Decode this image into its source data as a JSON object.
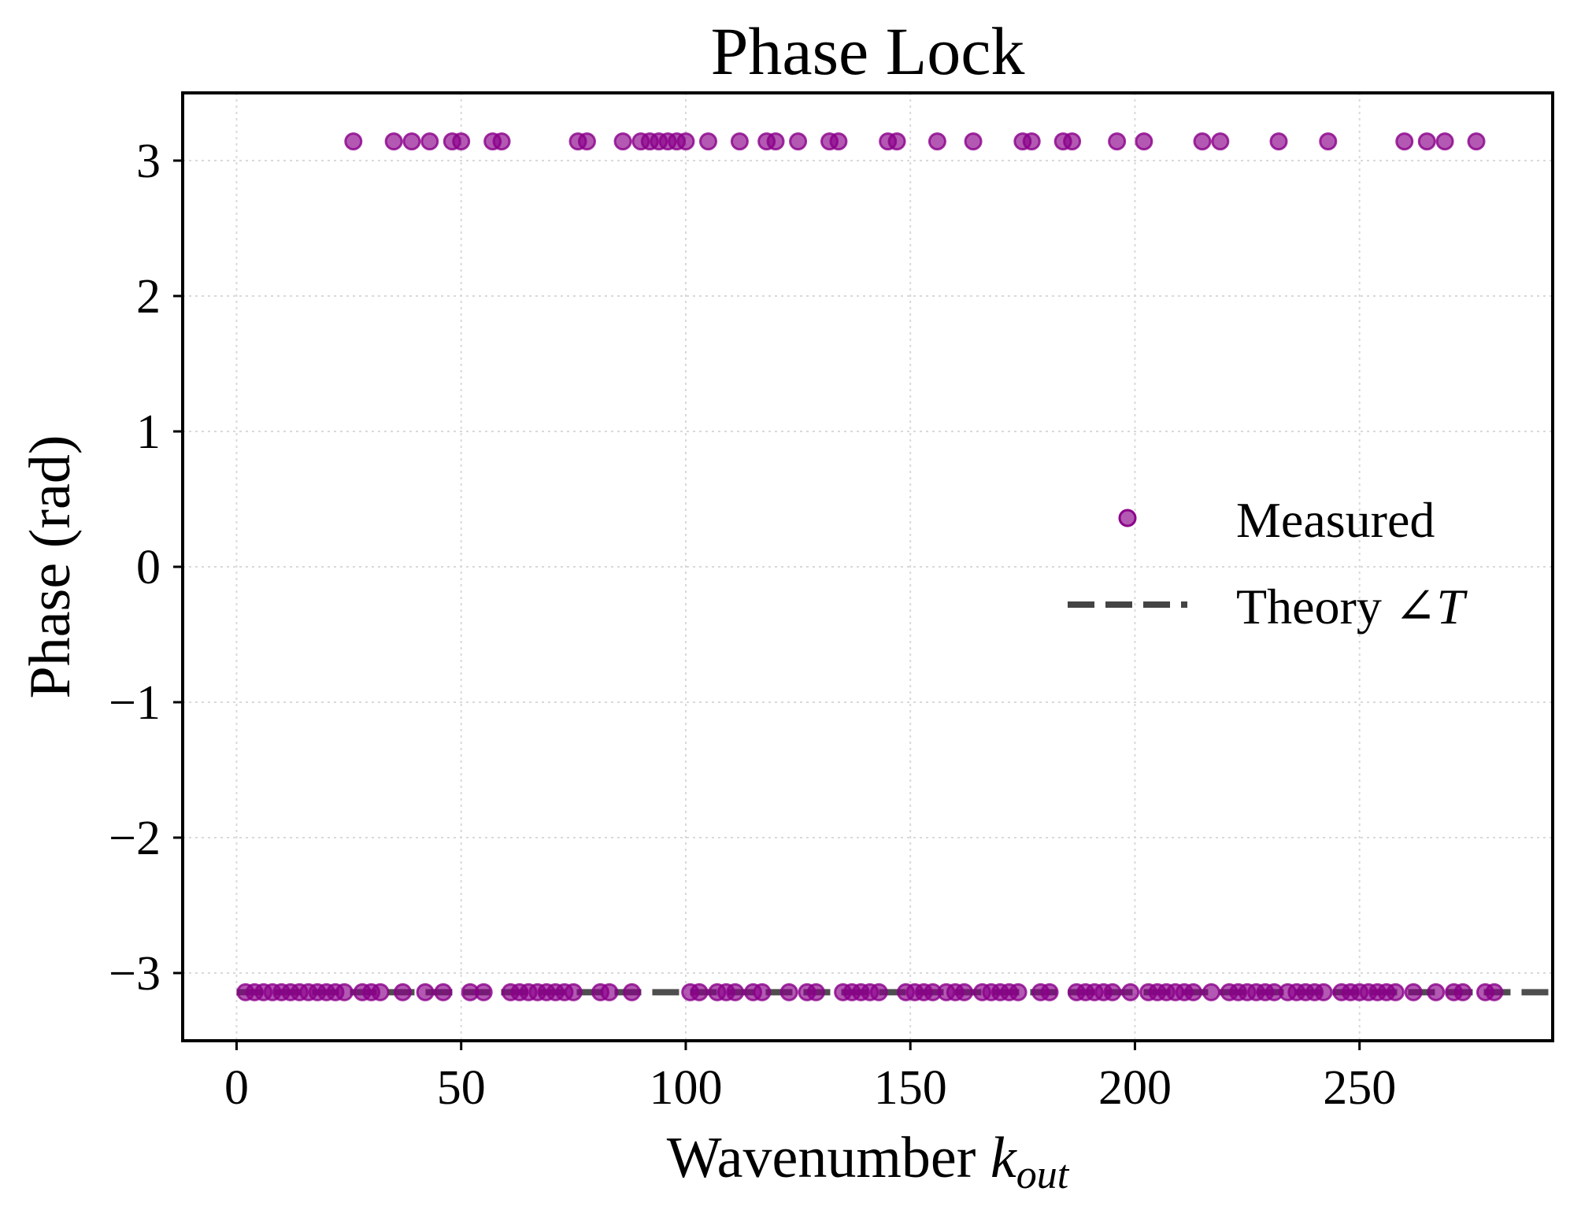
{
  "chart_data": {
    "type": "scatter",
    "title": "Phase Lock",
    "xlabel": "Wavenumber",
    "xlabel_var": "k",
    "xlabel_sub": "out",
    "ylabel": "Phase (rad)",
    "xlim": [
      -12,
      293
    ],
    "ylim": [
      -3.5,
      3.5
    ],
    "x_ticks": [
      0,
      50,
      100,
      150,
      200,
      250
    ],
    "x_tick_labels": [
      "0",
      "50",
      "100",
      "150",
      "200",
      "250"
    ],
    "y_ticks": [
      -3,
      -2,
      -1,
      0,
      1,
      2,
      3
    ],
    "y_tick_labels": [
      "−3",
      "−2",
      "−1",
      "0",
      "1",
      "2",
      "3"
    ],
    "grid": true,
    "legend_position": "center-right",
    "series": [
      {
        "name": "Measured",
        "kind": "scatter",
        "color": "#8B008B",
        "alpha": 0.65,
        "points_upper": {
          "y": 3.14159,
          "x": [
            26,
            35,
            39,
            43,
            48,
            50,
            57,
            59,
            76,
            78,
            86,
            90,
            92,
            94,
            96,
            98,
            100,
            105,
            112,
            118,
            120,
            125,
            132,
            134,
            145,
            147,
            156,
            164,
            175,
            177,
            184,
            186,
            196,
            202,
            215,
            219,
            232,
            243,
            260,
            265,
            269,
            276
          ]
        },
        "points_lower": {
          "y": -3.14159,
          "x": [
            2,
            4,
            6,
            8,
            10,
            12,
            14,
            16,
            18,
            20,
            22,
            24,
            28,
            30,
            32,
            37,
            42,
            46,
            52,
            55,
            61,
            63,
            65,
            67,
            69,
            71,
            73,
            75,
            81,
            83,
            88,
            101,
            103,
            107,
            109,
            111,
            115,
            117,
            123,
            127,
            129,
            135,
            137,
            139,
            141,
            143,
            149,
            151,
            153,
            155,
            158,
            160,
            162,
            166,
            168,
            170,
            172,
            174,
            179,
            181,
            187,
            189,
            191,
            193,
            195,
            199,
            203,
            205,
            207,
            209,
            211,
            213,
            217,
            221,
            223,
            225,
            227,
            229,
            231,
            234,
            236,
            238,
            240,
            242,
            246,
            248,
            250,
            252,
            254,
            256,
            258,
            262,
            267,
            271,
            273,
            278,
            280
          ]
        }
      },
      {
        "name": "Theory ∠",
        "name_italic": "T",
        "kind": "line",
        "style": "dashed",
        "color": "#444444",
        "y": -3.14159
      }
    ]
  }
}
